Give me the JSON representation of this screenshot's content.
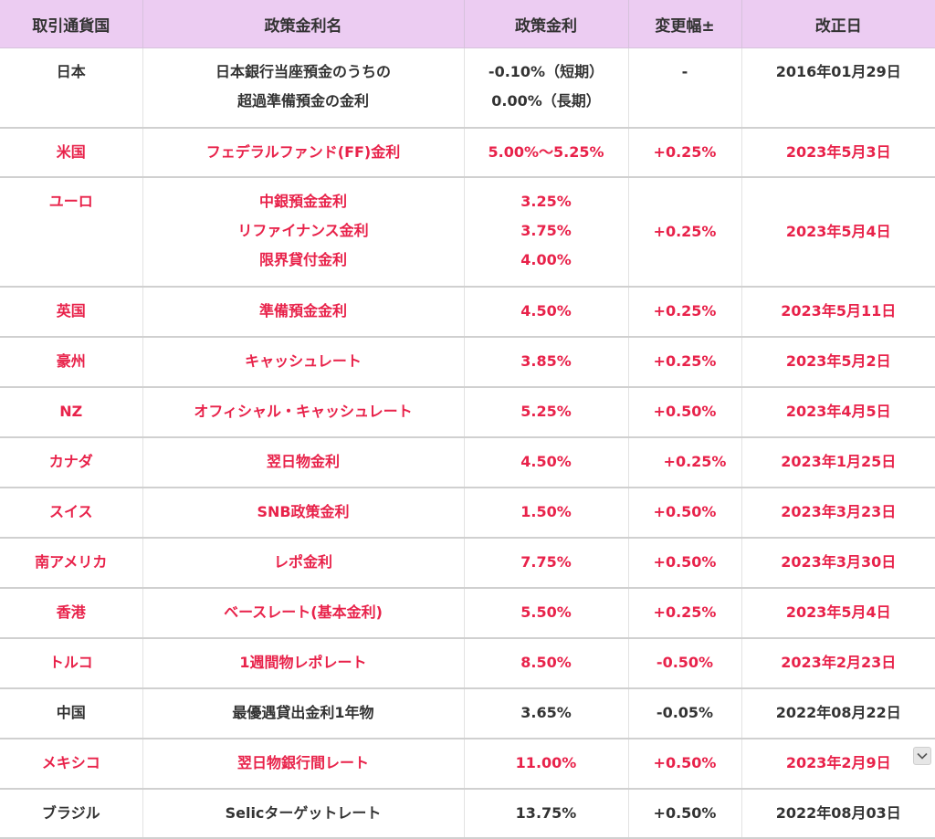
{
  "header": {
    "currency": "取引通貨国",
    "rate_name": "政策金利名",
    "rate": "政策金利",
    "change": "変更幅±",
    "date": "改正日"
  },
  "rows": [
    {
      "currency": "日本",
      "rate_name": [
        "日本銀行当座預金のうちの",
        "超過準備預金の金利"
      ],
      "rate": [
        "-0.10%（短期）",
        "0.00%（長期）"
      ],
      "change": "-",
      "date": "2016年01月29日"
    },
    {
      "currency": "米国",
      "rate_name": [
        "フェデラルファンド(FF)金利"
      ],
      "rate": [
        "5.00%〜5.25%"
      ],
      "change": "+0.25%",
      "date": "2023年5月3日"
    },
    {
      "currency": "ユーロ",
      "rate_name": [
        "中銀預金金利",
        "リファイナンス金利",
        "限界貸付金利"
      ],
      "rate": [
        "3.25%",
        "3.75%",
        "4.00%"
      ],
      "change": "+0.25%",
      "date": "2023年5月4日"
    },
    {
      "currency": "英国",
      "rate_name": [
        "準備預金金利"
      ],
      "rate": [
        "4.50%"
      ],
      "change": "+0.25%",
      "date": "2023年5月11日"
    },
    {
      "currency": "豪州",
      "rate_name": [
        "キャッシュレート"
      ],
      "rate": [
        "3.85%"
      ],
      "change": "+0.25%",
      "date": "2023年5月2日"
    },
    {
      "currency": "NZ",
      "rate_name": [
        "オフィシャル・キャッシュレート"
      ],
      "rate": [
        "5.25%"
      ],
      "change": "+0.50%",
      "date": "2023年4月5日"
    },
    {
      "currency": "カナダ",
      "rate_name": [
        "翌日物金利"
      ],
      "rate": [
        "4.50%"
      ],
      "change": "+0.25%",
      "date": "2023年1月25日"
    },
    {
      "currency": "スイス",
      "rate_name": [
        "SNB政策金利"
      ],
      "rate": [
        "1.50%"
      ],
      "change": "+0.50%",
      "date": "2023年3月23日"
    },
    {
      "currency": "南アメリカ",
      "rate_name": [
        "レポ金利"
      ],
      "rate": [
        "7.75%"
      ],
      "change": "+0.50%",
      "date": "2023年3月30日"
    },
    {
      "currency": "香港",
      "rate_name": [
        "ベースレート(基本金利)"
      ],
      "rate": [
        "5.50%"
      ],
      "change": "+0.25%",
      "date": "2023年5月4日"
    },
    {
      "currency": "トルコ",
      "rate_name": [
        "1週間物レポレート"
      ],
      "rate": [
        "8.50%"
      ],
      "change": "-0.50%",
      "date": "2023年2月23日"
    },
    {
      "currency": "中国",
      "rate_name": [
        "最優遇貸出金利1年物"
      ],
      "rate": [
        "3.65%"
      ],
      "change": "-0.05%",
      "date": "2022年08月22日"
    },
    {
      "currency": "メキシコ",
      "rate_name": [
        "翌日物銀行間レート"
      ],
      "rate": [
        "11.00%"
      ],
      "change": "+0.50%",
      "date": "2023年2月9日"
    },
    {
      "currency": "ブラジル",
      "rate_name": [
        "Selicターゲットレート"
      ],
      "rate": [
        "13.75%"
      ],
      "change": "+0.50%",
      "date": "2022年08月03日"
    }
  ],
  "icons": {
    "scroll": "chevron-down-icon"
  },
  "colors": {
    "header_bg": "#ecccf2",
    "highlight_text": "#e8224a",
    "normal_text": "#333333"
  }
}
